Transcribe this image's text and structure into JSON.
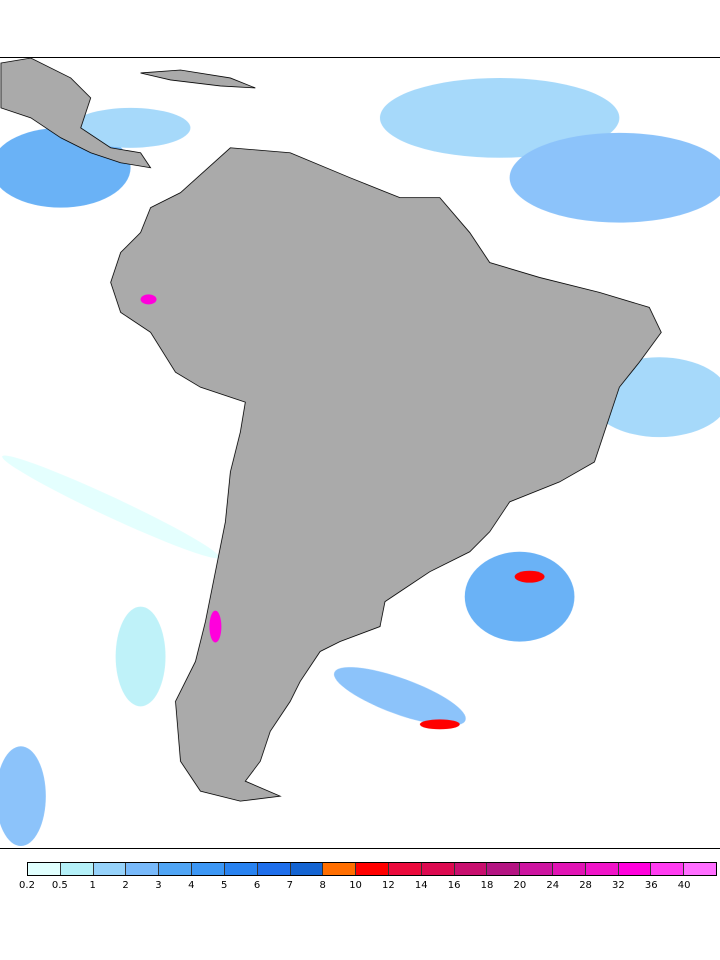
{
  "colorbar": {
    "labels": [
      "0.2",
      "0.5",
      "1",
      "2",
      "3",
      "4",
      "5",
      "6",
      "7",
      "8",
      "10",
      "12",
      "14",
      "16",
      "18",
      "20",
      "24",
      "28",
      "32",
      "36",
      "40"
    ],
    "colors": [
      "#e0fffe",
      "#b4f0f8",
      "#96d2fa",
      "#78b9fa",
      "#50a5f5",
      "#3c97f5",
      "#2882f0",
      "#1e6eeb",
      "#1464d2",
      "#ff6e00",
      "#ff0000",
      "#eb0a3c",
      "#dc0a50",
      "#c80f6e",
      "#b41482",
      "#cd14a0",
      "#e114b4",
      "#f014c8",
      "#ff00dc",
      "#ff3cf0",
      "#ff6eff"
    ]
  },
  "map": {
    "land_color": "#aaaaaa",
    "ocean_color": "#ffffff"
  }
}
